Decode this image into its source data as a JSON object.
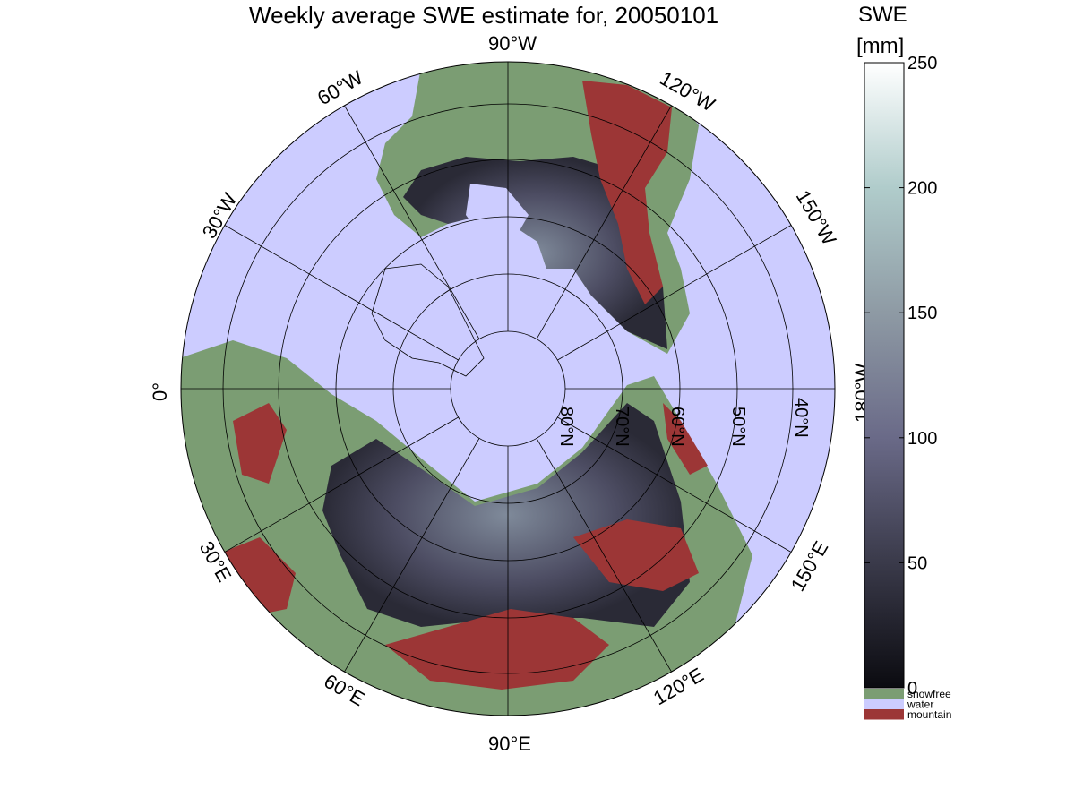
{
  "title": "Weekly average SWE estimate for, 20050101",
  "colorbar": {
    "title": "SWE",
    "units": "[mm]",
    "min": 0,
    "max": 250,
    "ticks": [
      "0",
      "50",
      "100",
      "150",
      "200",
      "250"
    ],
    "ramp": [
      "#0b0b10",
      "#3a3a4a",
      "#6a6a88",
      "#8e9aa4",
      "#b0cccb",
      "#ffffff"
    ],
    "categories": [
      {
        "label": "snowfree",
        "color": "#7b9d73"
      },
      {
        "label": "water",
        "color": "#ccccff"
      },
      {
        "label": "mountain",
        "color": "#9c3636"
      }
    ]
  },
  "map": {
    "projection": "north polar stereographic",
    "ocean_color": "#ccccff",
    "snowfree_color": "#7b9d73",
    "mountain_color": "#9c3636",
    "snow_color": "#4a4a5e",
    "longitude_labels": {
      "top": "90°W",
      "left": "0°",
      "right": "180°W",
      "bottom": "90°E",
      "nw_upper": "60°W",
      "nw_lower": "30°W",
      "ne_upper": "120°W",
      "ne_lower": "150°W",
      "sw_upper": "30°E",
      "sw_lower": "60°E",
      "se_lower": "120°E",
      "se_upper": "150°E"
    },
    "latitude_labels": [
      "80°N",
      "70°N",
      "60°N",
      "50°N",
      "40°N"
    ]
  }
}
